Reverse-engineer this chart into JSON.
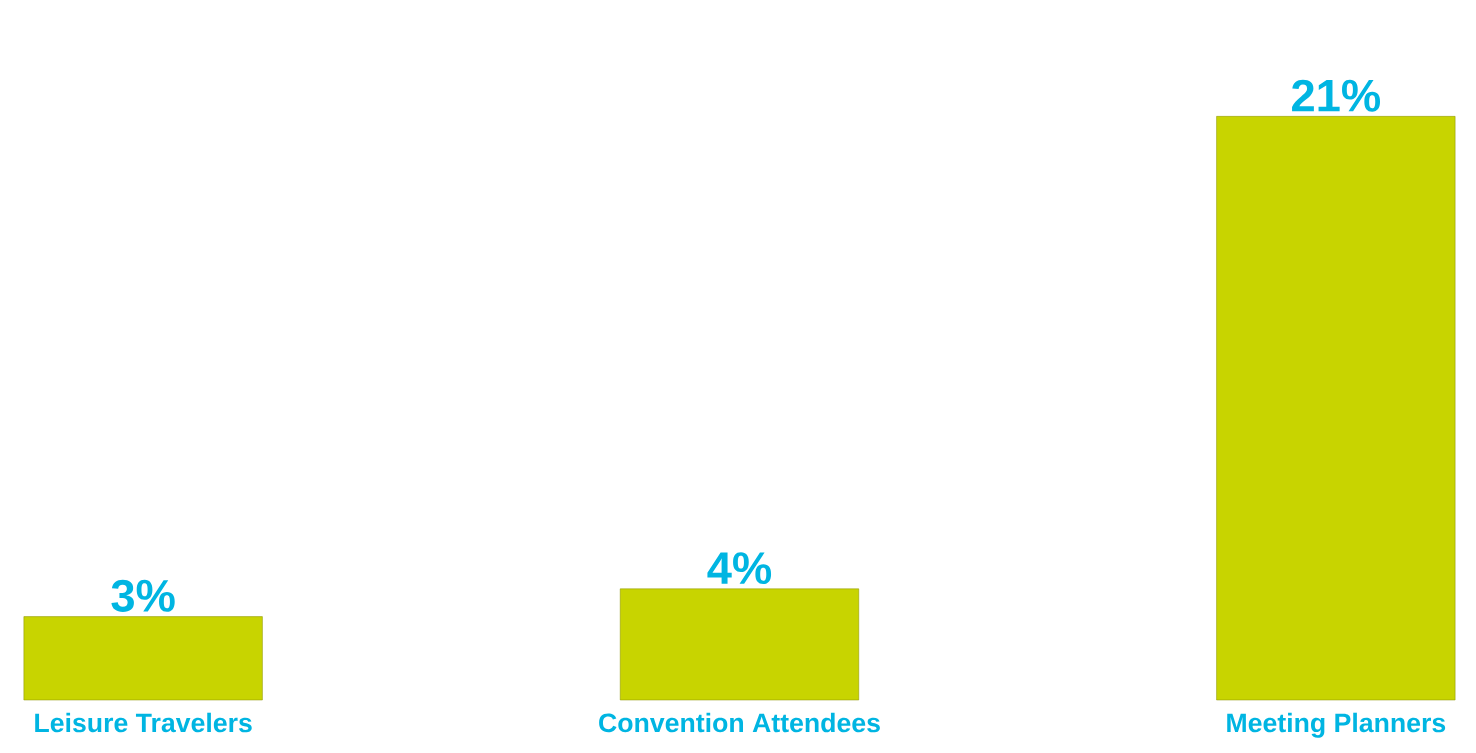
{
  "chart_data": {
    "type": "bar",
    "categories": [
      "Leisure Travelers",
      "Convention Attendees",
      "Meeting Planners"
    ],
    "values": [
      3,
      4,
      21
    ],
    "value_labels": [
      "3%",
      "4%",
      "21%"
    ],
    "color": "#c8d400"
  }
}
